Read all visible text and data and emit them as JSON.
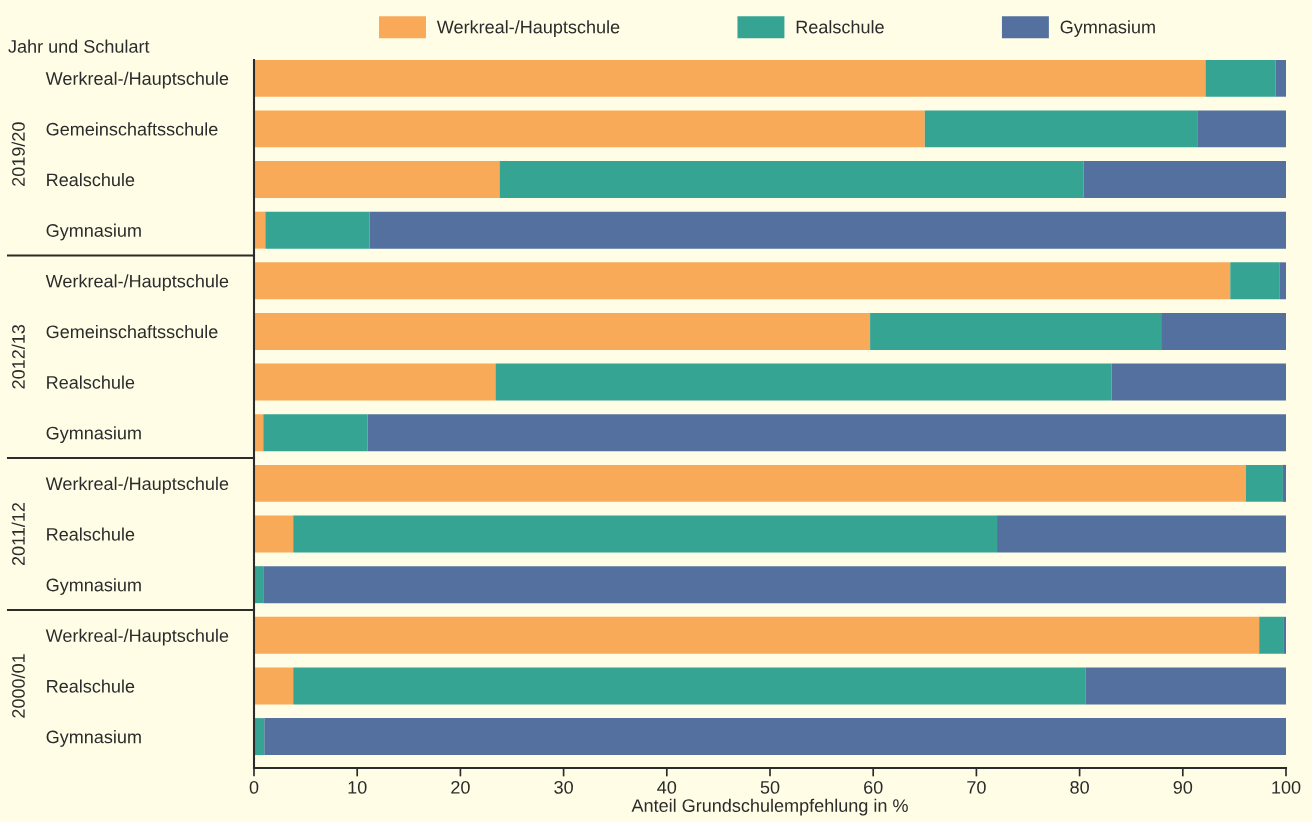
{
  "chart_data": {
    "type": "bar",
    "orientation": "horizontal",
    "stacked": true,
    "ylabel": "Jahr und Schulart",
    "xlabel": "Anteil Grundschulempfehlung in %",
    "categories": [
      "Werkreal-/Hauptschule",
      "Gemeinschaftsschule",
      "Realschule",
      "Gymnasium",
      "Werkreal-/Hauptschule",
      "Gemeinschaftsschule",
      "Realschule",
      "Gymnasium",
      "Werkreal-/Hauptschule",
      "Realschule",
      "Gymnasium",
      "Werkreal-/Hauptschule",
      "Realschule",
      "Gymnasium"
    ],
    "series": [
      {
        "name": "Werkreal-/Hauptschule",
        "color": "#f8aa58",
        "values": [
          92.2,
          65.0,
          23.8,
          1.1,
          94.6,
          59.7,
          23.4,
          0.9,
          96.1,
          3.8,
          0,
          97.4,
          3.8,
          0
        ]
      },
      {
        "name": "Realschule",
        "color": "#35a493",
        "values": [
          6.8,
          26.4,
          56.6,
          10.1,
          4.8,
          28.2,
          59.7,
          10.1,
          3.6,
          68.2,
          0.9,
          2.4,
          76.8,
          1.0
        ]
      },
      {
        "name": "Gymnasium",
        "color": "#53709e",
        "values": [
          1.0,
          8.6,
          19.6,
          88.8,
          0.6,
          12.1,
          16.9,
          89.0,
          0.3,
          28.0,
          99.1,
          0.2,
          19.4,
          99.0
        ]
      }
    ],
    "annotations": [
      "2019/20",
      "2012/13",
      "2011/12",
      "2000/01"
    ],
    "xlim": [
      0,
      100
    ],
    "xticks": [
      0,
      10,
      20,
      30,
      40,
      50,
      60,
      70,
      80,
      90,
      100
    ],
    "grid": false,
    "legend": "top"
  }
}
